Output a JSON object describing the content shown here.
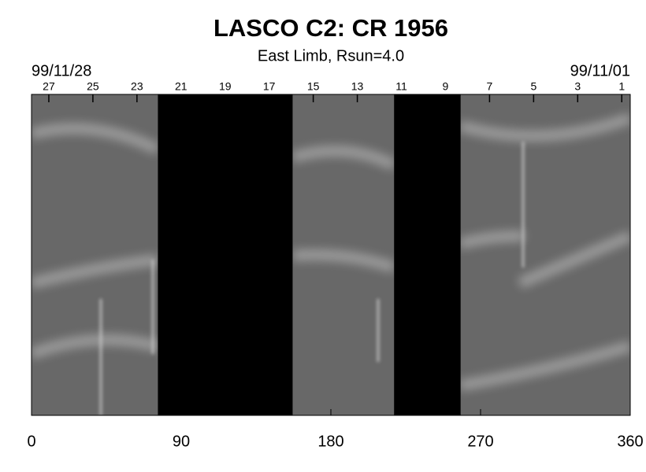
{
  "chart_data": {
    "type": "image",
    "title": "LASCO C2: CR 1956",
    "subtitle": "East Limb, Rsun=4.0",
    "top_left_label": "99/11/28",
    "top_right_label": "99/11/01",
    "xlim": [
      0,
      360
    ],
    "xticks": [
      0,
      90,
      180,
      270,
      360
    ],
    "top_ticks": [
      {
        "value": 10.4,
        "label": "27"
      },
      {
        "value": 36.9,
        "label": "25"
      },
      {
        "value": 63.4,
        "label": "23"
      },
      {
        "value": 89.9,
        "label": "21"
      },
      {
        "value": 116.4,
        "label": "19"
      },
      {
        "value": 142.9,
        "label": "17"
      },
      {
        "value": 169.4,
        "label": "15"
      },
      {
        "value": 195.9,
        "label": "13"
      },
      {
        "value": 222.4,
        "label": "11"
      },
      {
        "value": 248.9,
        "label": "9"
      },
      {
        "value": 275.4,
        "label": "7"
      },
      {
        "value": 301.9,
        "label": "5"
      },
      {
        "value": 328.4,
        "label": "3"
      },
      {
        "value": 354.9,
        "label": "1"
      }
    ],
    "data_gaps": [
      [
        76,
        157
      ],
      [
        218,
        258
      ]
    ]
  }
}
